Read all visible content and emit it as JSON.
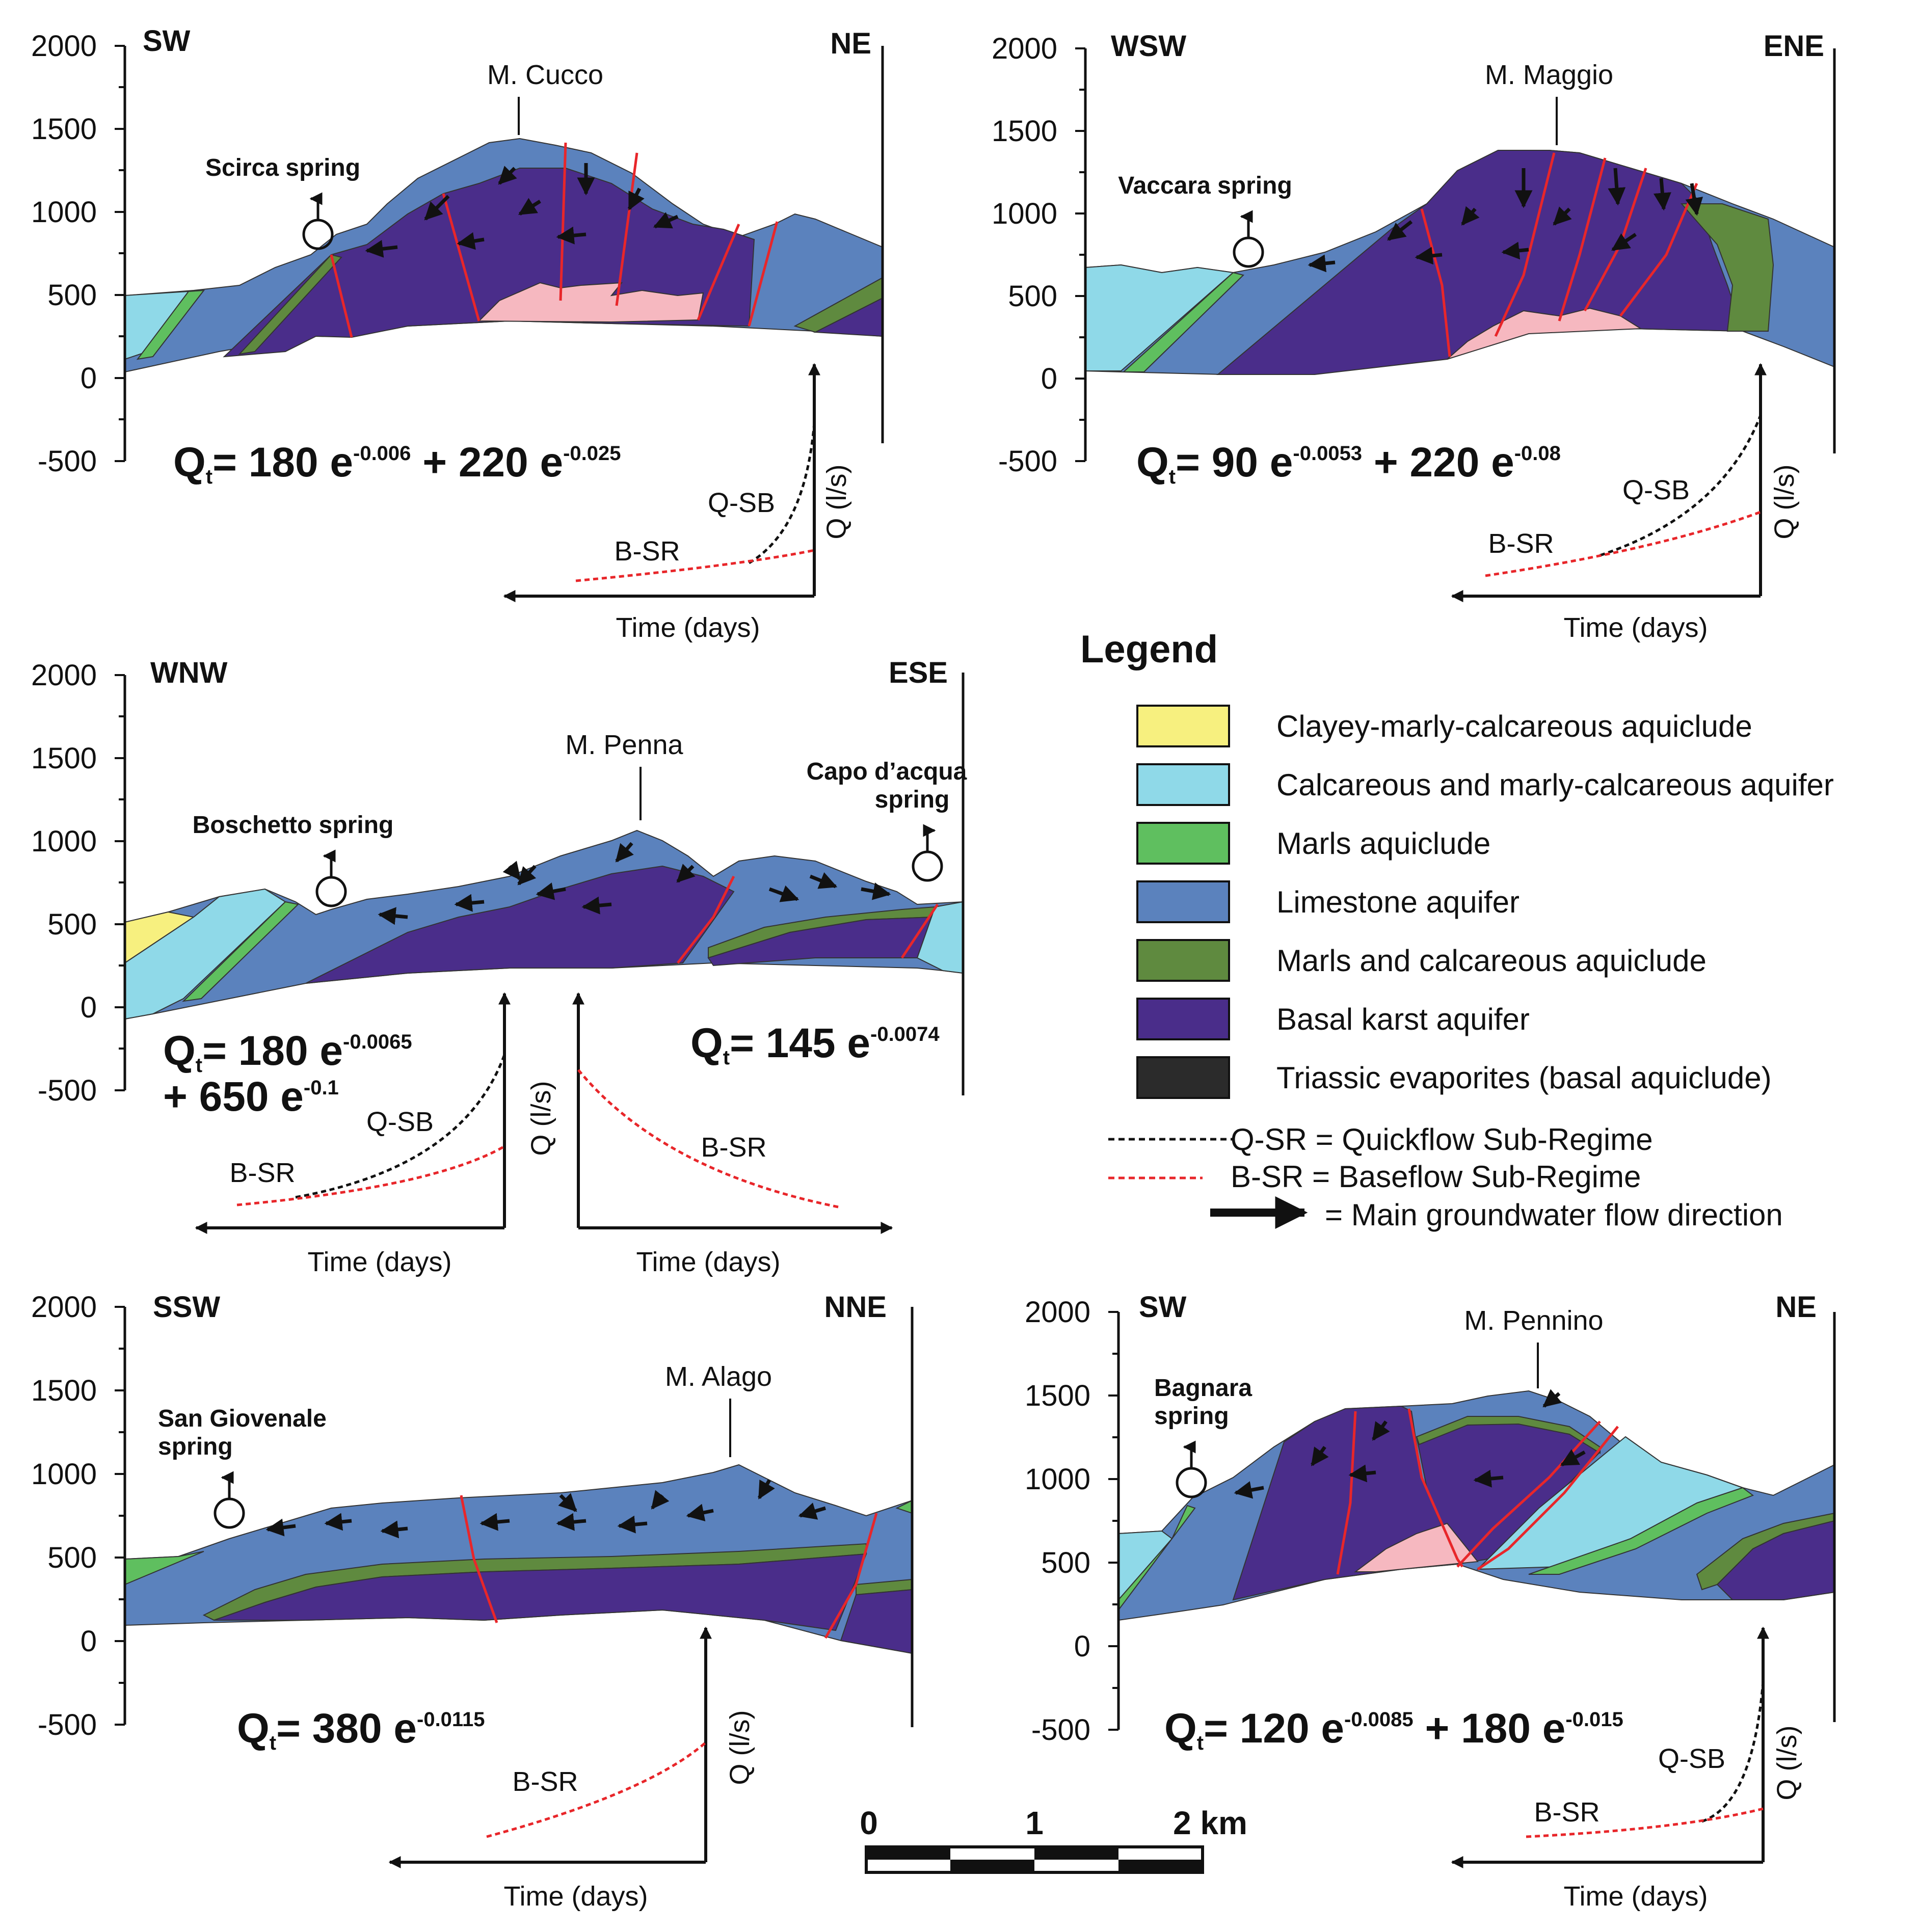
{
  "colors": {
    "clayey": "#f7f07f",
    "calc_aquifer": "#8fd9e8",
    "marls": "#5fbf5f",
    "limestone": "#5b82bd",
    "marls_calc": "#5f8a3f",
    "basal": "#4a2d8a",
    "triassic": "#2b2b2b",
    "evap_pink": "#f6b8c0",
    "fault": "#e8262a",
    "qsr": "#111111",
    "bsr": "#e8262a"
  },
  "sections": [
    {
      "id": "cucco",
      "left_dir": "SW",
      "right_dir": "NE",
      "peak": "M. Cucco",
      "spring": [
        "Scirca spring"
      ],
      "eq_parts": [
        "Q",
        "t",
        "= 180 e",
        "-0.006",
        " + 220 e",
        "-0.025"
      ],
      "yticks": [
        "2000",
        "1500",
        "1000",
        "500",
        "0",
        "-500"
      ],
      "hydrograph": {
        "q_label": "Q-SB",
        "b_label": "B-SR",
        "x_label": "Time (days)",
        "y_label": "Q (l/s)"
      }
    },
    {
      "id": "maggio",
      "left_dir": "WSW",
      "right_dir": "ENE",
      "peak": "M. Maggio",
      "spring": [
        "Vaccara spring"
      ],
      "eq_parts": [
        "Q",
        "t",
        "= 90 e",
        "-0.0053",
        " + 220 e",
        "-0.08"
      ],
      "yticks": [
        "2000",
        "1500",
        "1000",
        "500",
        "0",
        "-500"
      ],
      "hydrograph": {
        "q_label": "Q-SB",
        "b_label": "B-SR",
        "x_label": "Time (days)",
        "y_label": "Q (l/s)"
      }
    },
    {
      "id": "penna",
      "left_dir": "WNW",
      "right_dir": "ESE",
      "peak": "M. Penna",
      "spring": [
        "Boschetto spring"
      ],
      "spring2": [
        "Capo d’acqua",
        "spring"
      ],
      "eq_parts": [
        "Q",
        "t",
        "= 180 e",
        "-0.0065"
      ],
      "eq_line2": [
        "+ 650 e",
        "-0.1"
      ],
      "eq2_parts": [
        "Q",
        "t",
        "= 145 e",
        "-0.0074"
      ],
      "yticks": [
        "2000",
        "1500",
        "1000",
        "500",
        "0",
        "-500"
      ],
      "hydrograph": {
        "q_label": "Q-SB",
        "b_label": "B-SR",
        "x_label": "Time (days)",
        "y_label": "Q (l/s)"
      },
      "hydrograph2": {
        "b_label": "B-SR",
        "x_label": "Time (days)"
      }
    },
    {
      "id": "alago",
      "left_dir": "SSW",
      "right_dir": "NNE",
      "peak": "M. Alago",
      "spring": [
        "San Giovenale",
        "spring"
      ],
      "eq_parts": [
        "Q",
        "t",
        "= 380 e",
        "-0.0115"
      ],
      "yticks": [
        "2000",
        "1500",
        "1000",
        "500",
        "0",
        "-500"
      ],
      "hydrograph": {
        "b_label": "B-SR",
        "x_label": "Time (days)",
        "y_label": "Q (l/s)"
      }
    },
    {
      "id": "pennino",
      "left_dir": "SW",
      "right_dir": "NE",
      "peak": "M. Pennino",
      "spring": [
        "Bagnara",
        "spring"
      ],
      "eq_parts": [
        "Q",
        "t",
        "= 120 e",
        "-0.0085",
        " + 180 e",
        "-0.015"
      ],
      "yticks": [
        "2000",
        "1500",
        "1000",
        "500",
        "0",
        "-500"
      ],
      "hydrograph": {
        "q_label": "Q-SB",
        "b_label": "B-SR",
        "x_label": "Time (days)",
        "y_label": "Q (l/s)"
      }
    }
  ],
  "legend": {
    "title": "Legend",
    "items": [
      {
        "label": "Clayey-marly-calcareous aquiclude",
        "color": "#f7f07f"
      },
      {
        "label": "Calcareous and marly-calcareous aquifer",
        "color": "#8fd9e8"
      },
      {
        "label": "Marls aquiclude",
        "color": "#5fbf5f"
      },
      {
        "label": "Limestone aquifer",
        "color": "#5b82bd"
      },
      {
        "label": "Marls and calcareous aquiclude",
        "color": "#5f8a3f"
      },
      {
        "label": "Basal karst aquifer",
        "color": "#4a2d8a"
      },
      {
        "label": "Triassic evaporites (basal aquiclude)",
        "color": "#2b2b2b"
      }
    ],
    "qsr": "Q-SR = Quickflow Sub-Regime",
    "bsr": "B-SR = Baseflow Sub-Regime",
    "flow": "= Main groundwater flow direction"
  },
  "scale_bar": {
    "labels": [
      "0",
      "1",
      "2 km"
    ]
  }
}
